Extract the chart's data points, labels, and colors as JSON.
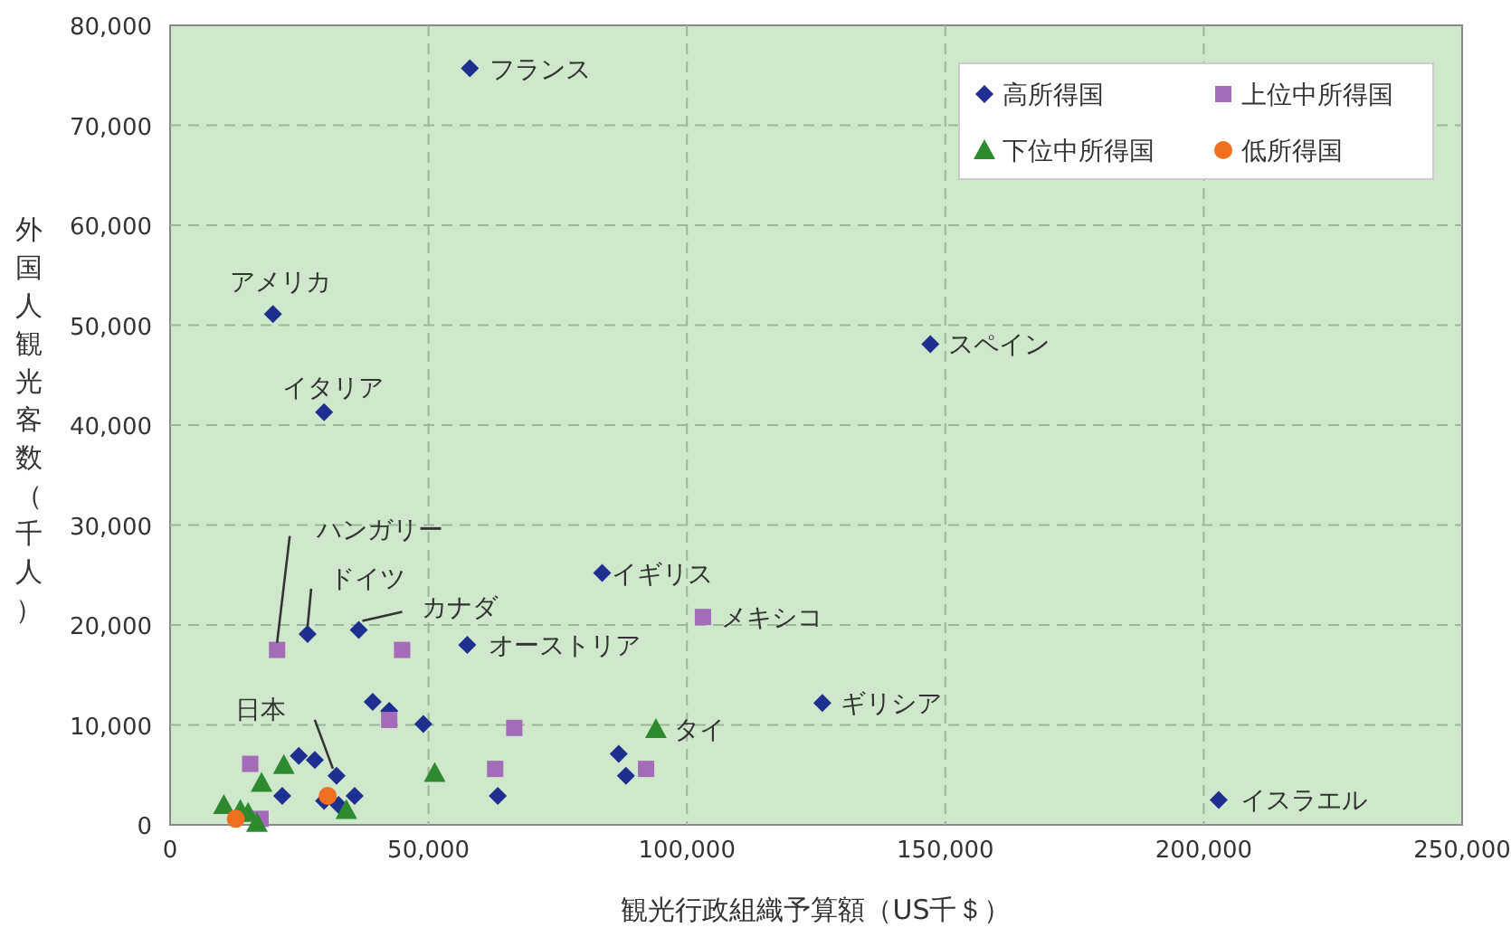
{
  "chart_data": {
    "type": "scatter",
    "xlabel": "観光行政組織予算額（US千＄）",
    "ylabel": "外国人観光客数（千人）",
    "xlim": [
      0,
      250000
    ],
    "ylim": [
      0,
      80000
    ],
    "xticks": [
      0,
      {
        "value": 50000,
        "label": "50,000"
      },
      {
        "value": 100000,
        "label": "100,000"
      },
      {
        "value": 150000,
        "label": "150,000"
      },
      {
        "value": 200000,
        "label": "200,000"
      },
      {
        "value": 250000,
        "label": "250,000"
      }
    ],
    "yticks": [
      0,
      {
        "value": 10000,
        "label": "10,000"
      },
      {
        "value": 20000,
        "label": "20,000"
      },
      {
        "value": 30000,
        "label": "30,000"
      },
      {
        "value": 40000,
        "label": "40,000"
      },
      {
        "value": 50000,
        "label": "50,000"
      },
      {
        "value": 60000,
        "label": "60,000"
      },
      {
        "value": 70000,
        "label": "70,000"
      },
      {
        "value": 80000,
        "label": "80,000"
      }
    ],
    "grid": true,
    "legend": "top right",
    "series": [
      {
        "name": "高所得国",
        "color": "#1f2f8f",
        "marker": "diamond",
        "x": [
          58000,
          19900,
          29800,
          147100,
          83600,
          26600,
          36500,
          57500,
          126200,
          202900,
          32200,
          21700,
          29800,
          32600,
          35700,
          24900,
          28000,
          39200,
          42400,
          49000,
          63400,
          86800,
          88200
        ],
        "values": [
          75700,
          51100,
          41300,
          48100,
          25200,
          19100,
          19500,
          18000,
          12200,
          2500,
          4900,
          2900,
          2400,
          2000,
          2900,
          6900,
          6500,
          12300,
          11400,
          10100,
          2900,
          7100,
          4900
        ]
      },
      {
        "name": "上位中所得国",
        "color": "#a46bb8",
        "marker": "square",
        "x": [
          20700,
          44900,
          103100,
          42400,
          66600,
          62900,
          92100,
          15500,
          17500
        ],
        "values": [
          17500,
          17500,
          20800,
          10500,
          9700,
          5600,
          5600,
          6100,
          600
        ]
      },
      {
        "name": "下位中所得国",
        "color": "#2e8a2e",
        "marker": "triangle",
        "x": [
          94000,
          51200,
          22000,
          17700,
          10400,
          13600,
          15100,
          16800,
          34100
        ],
        "values": [
          9600,
          5200,
          6000,
          4200,
          2000,
          1500,
          1200,
          200,
          1500
        ]
      },
      {
        "name": "低所得国",
        "color": "#f07020",
        "marker": "circle",
        "x": [
          12700,
          30500
        ],
        "values": [
          600,
          2900
        ]
      }
    ],
    "annotations": [
      {
        "text": "フランス",
        "x": 58000,
        "y": 75700
      },
      {
        "text": "アメリカ",
        "x": 19900,
        "y": 51100
      },
      {
        "text": "イタリア",
        "x": 29800,
        "y": 41300
      },
      {
        "text": "スペイン",
        "x": 147100,
        "y": 48100
      },
      {
        "text": "イギリス",
        "x": 83600,
        "y": 25200
      },
      {
        "text": "ハンガリー",
        "x": 20700,
        "y": 17500
      },
      {
        "text": "ドイツ",
        "x": 26600,
        "y": 19100
      },
      {
        "text": "カナダ",
        "x": 36500,
        "y": 19500
      },
      {
        "text": "オーストリア",
        "x": 57500,
        "y": 18000
      },
      {
        "text": "メキシコ",
        "x": 103100,
        "y": 20800
      },
      {
        "text": "ギリシア",
        "x": 126200,
        "y": 12200
      },
      {
        "text": "タイ",
        "x": 94000,
        "y": 9600
      },
      {
        "text": "日本",
        "x": 32200,
        "y": 4900
      },
      {
        "text": "イスラエル",
        "x": 202900,
        "y": 2500
      }
    ]
  }
}
